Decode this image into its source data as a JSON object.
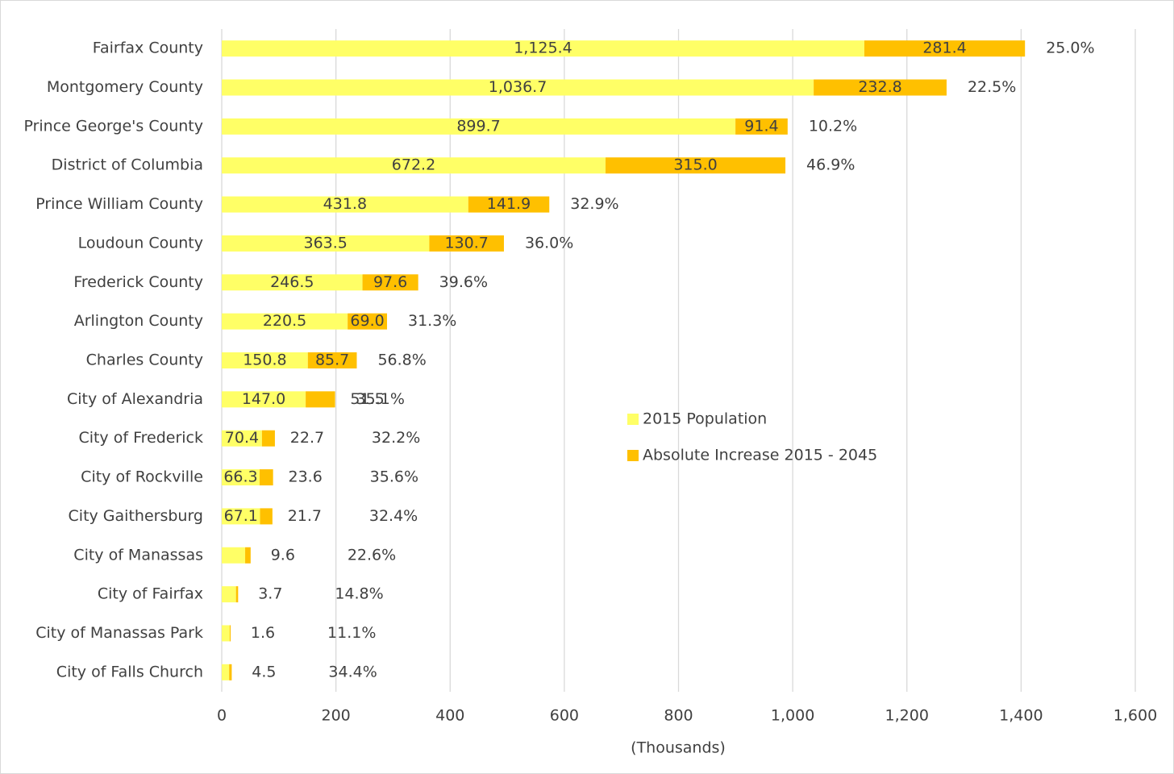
{
  "chart_data": {
    "type": "stacked_barh",
    "x_label": "(Thousands)",
    "categories": [
      "Fairfax County",
      "Montgomery County",
      "Prince George's County",
      "District of Columbia",
      "Prince William County",
      "Loudoun County",
      "Frederick County",
      "Arlington County",
      "Charles County",
      "City of Alexandria",
      "City of Frederick",
      "City of Rockville",
      "City Gaithersburg",
      "City of Manassas",
      "City of Fairfax",
      "City of Manassas Park",
      "City of Falls Church"
    ],
    "series": [
      {
        "name": "2015 Population",
        "color": "#ffff66",
        "values": [
          1125.4,
          1036.7,
          899.7,
          672.2,
          431.8,
          363.5,
          246.5,
          220.5,
          150.8,
          147.0,
          70.4,
          66.3,
          67.1,
          41,
          25,
          14,
          13
        ],
        "value_labels": [
          "1,125.4",
          "1,036.7",
          "899.7",
          "672.2",
          "431.8",
          "363.5",
          "246.5",
          "220.5",
          "150.8",
          "147.0",
          "70.4",
          "66.3",
          "67.1",
          null,
          null,
          null,
          null
        ]
      },
      {
        "name": "Absolute Increase 2015 - 2045",
        "color": "#ffc000",
        "values": [
          281.4,
          232.8,
          91.4,
          315.0,
          141.9,
          130.7,
          97.6,
          69.0,
          85.7,
          51.5,
          22.7,
          23.6,
          21.7,
          9.6,
          3.7,
          1.6,
          4.5
        ],
        "value_labels": [
          "281.4",
          "232.8",
          "91.4",
          "315.0",
          "141.9",
          "130.7",
          "97.6",
          "69.0",
          "85.7",
          "51.5",
          "22.7",
          "23.6",
          "21.7",
          "9.6",
          "3.7",
          "1.6",
          "4.5"
        ]
      }
    ],
    "annotations": [
      "25.0%",
      "22.5%",
      "10.2%",
      "46.9%",
      "32.9%",
      "36.0%",
      "39.6%",
      "31.3%",
      "56.8%",
      "35.1%",
      "32.2%",
      "35.6%",
      "32.4%",
      "22.6%",
      "14.8%",
      "11.1%",
      "34.4%"
    ],
    "annotation_color": "#ff0000",
    "xlim": [
      0,
      1600
    ],
    "xticks": [
      0,
      200,
      400,
      600,
      800,
      {
        "value": 1000,
        "label": "1,000"
      },
      {
        "value": 1200,
        "label": "1,200"
      },
      {
        "value": 1400,
        "label": "1,400"
      },
      {
        "value": 1600,
        "label": "1,600"
      }
    ],
    "grid": true,
    "legend": "center-right"
  }
}
